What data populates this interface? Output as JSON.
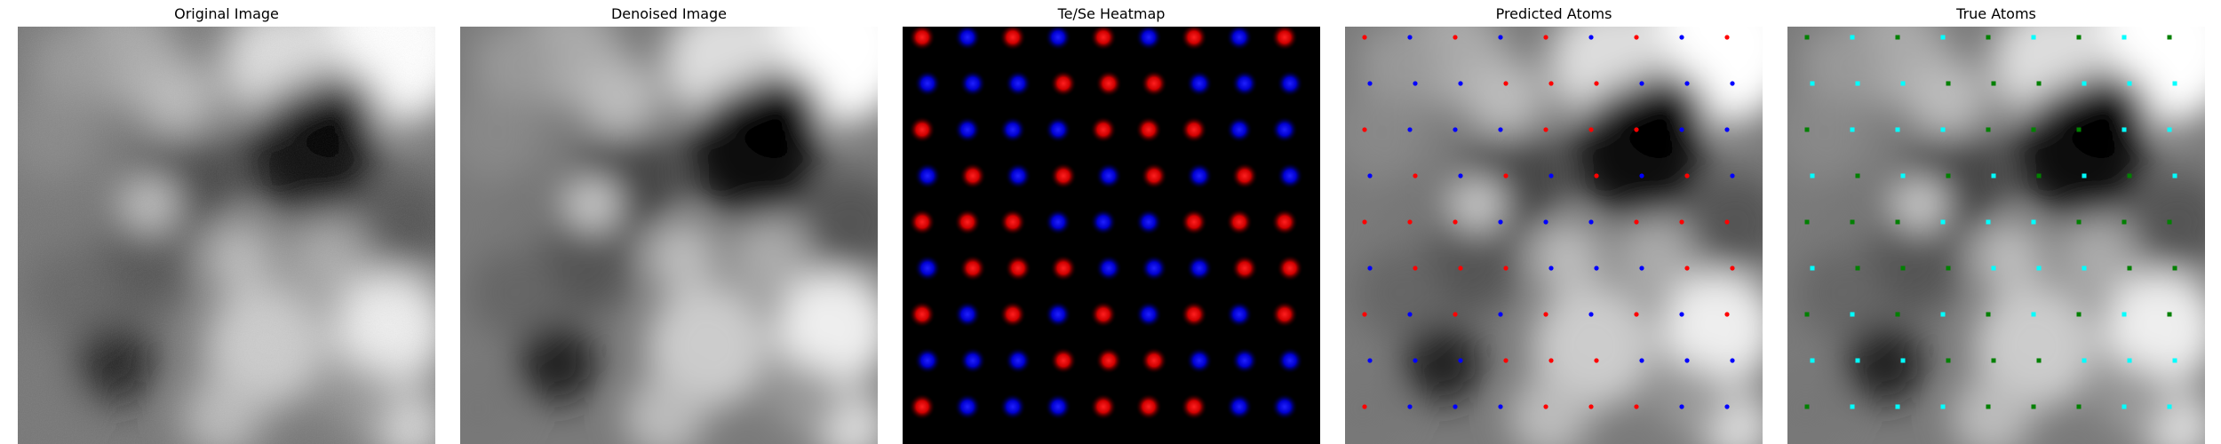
{
  "figure": {
    "panels": [
      {
        "id": "original",
        "title": "Original Image"
      },
      {
        "id": "denoised",
        "title": "Denoised Image"
      },
      {
        "id": "heatmap",
        "title": "Te/Se Heatmap"
      },
      {
        "id": "predicted",
        "title": "Predicted Atoms"
      },
      {
        "id": "true",
        "title": "True Atoms"
      }
    ]
  },
  "colors": {
    "te_heatmap": "#ff1010",
    "se_heatmap": "#1010ff",
    "te_marker": "#ff0000",
    "se_marker": "#0000ff",
    "true_marker_a": "#00ffff",
    "true_marker_b": "#008000",
    "heatmap_background": "#000000"
  }
}
